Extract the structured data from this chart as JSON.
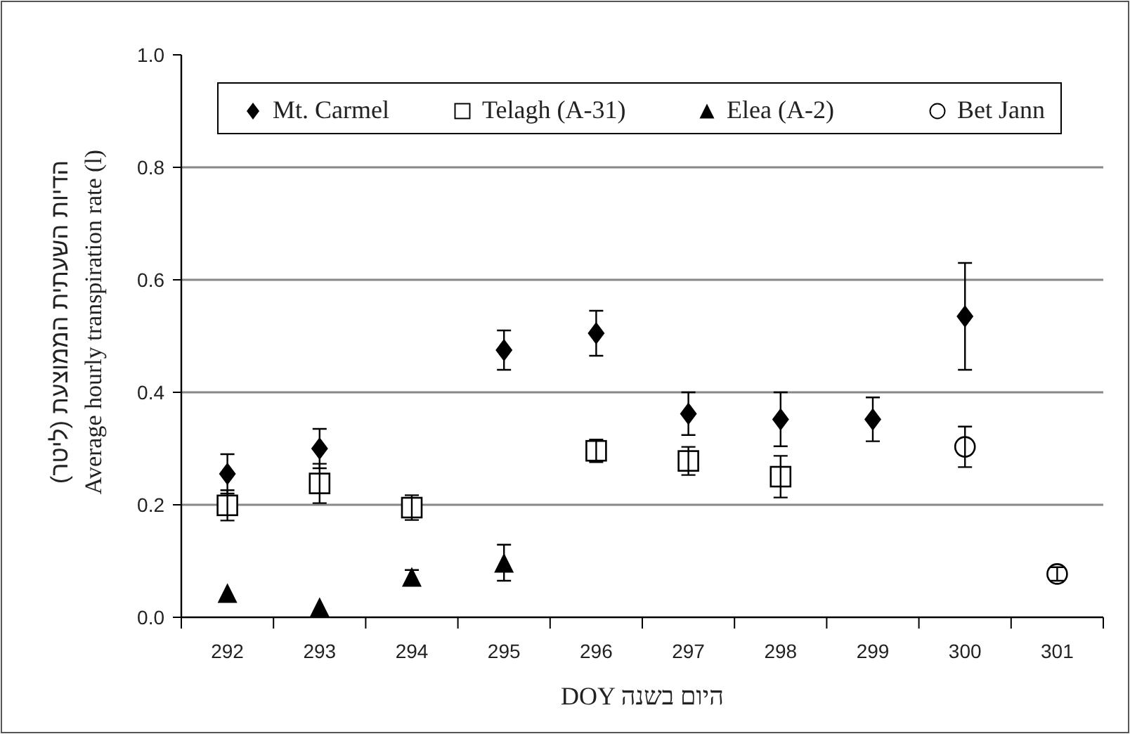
{
  "chart_data": {
    "type": "scatter",
    "xlabel": "DOY היום בשנה",
    "ylabel": "הדיות השעתית הממוצעת (ליטר)\nAverage hourly transpiration rate (l)",
    "categories": [
      "292",
      "293",
      "294",
      "295",
      "296",
      "297",
      "298",
      "299",
      "300",
      "301"
    ],
    "ylim": [
      0,
      1
    ],
    "yticks": [
      {
        "value": 0,
        "label": "0.0"
      },
      {
        "value": 0.2,
        "label": "0.2"
      },
      {
        "value": 0.4,
        "label": "0.4"
      },
      {
        "value": 0.6,
        "label": "0.6"
      },
      {
        "value": 0.8,
        "label": "0.8"
      },
      {
        "value": 1,
        "label": "1.0"
      }
    ],
    "grid": "y",
    "legend": "top",
    "series": [
      {
        "name": "Mt. Carmel",
        "color": "#000000",
        "marker": "diamond",
        "values": [
          0.255,
          0.3,
          null,
          0.475,
          0.505,
          0.362,
          0.352,
          0.352,
          0.535,
          null
        ],
        "errors": [
          0.035,
          0.035,
          null,
          0.035,
          0.04,
          0.038,
          0.048,
          0.039,
          0.095,
          null
        ]
      },
      {
        "name": "Telagh (A-31)",
        "color": "#000000",
        "marker": "square",
        "values": [
          0.199,
          0.238,
          0.195,
          null,
          0.296,
          0.278,
          0.25,
          null,
          null,
          null
        ],
        "errors": [
          0.027,
          0.035,
          0.022,
          null,
          0.02,
          0.025,
          0.037,
          null,
          null,
          null
        ]
      },
      {
        "name": "Elea (A-2)",
        "color": "#000000",
        "marker": "triangle",
        "values": [
          0.043,
          0.018,
          0.072,
          0.097,
          null,
          null,
          null,
          null,
          null,
          null
        ],
        "errors": [
          null,
          null,
          0.012,
          0.032,
          null,
          null,
          null,
          null,
          null,
          null
        ]
      },
      {
        "name": "Bet Jann",
        "color": "#000000",
        "marker": "circle",
        "values": [
          null,
          null,
          null,
          null,
          null,
          null,
          null,
          null,
          0.303,
          0.077
        ],
        "errors": [
          null,
          null,
          null,
          null,
          null,
          null,
          null,
          null,
          0.036,
          0.012
        ]
      }
    ]
  }
}
